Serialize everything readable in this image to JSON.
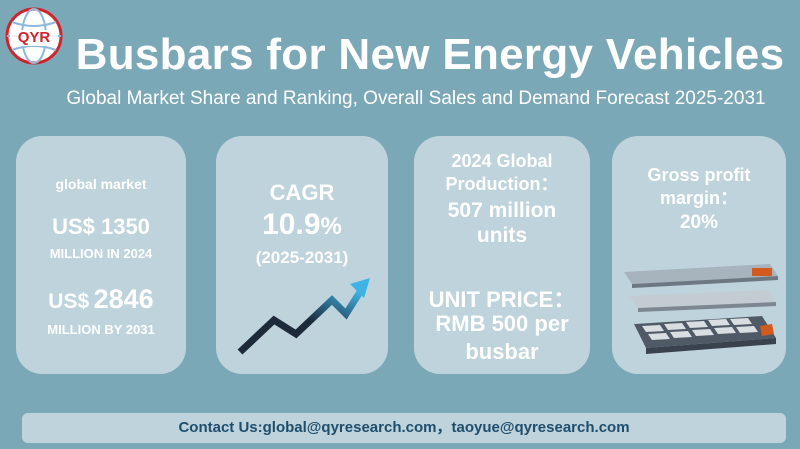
{
  "logo": {
    "text": "QYR",
    "icon": "globe-icon",
    "color": "#d0232a"
  },
  "header": {
    "title": "Busbars for New Energy Vehicles",
    "subtitle": "Global Market Share and Ranking, Overall Sales and Demand Forecast 2025-2031"
  },
  "cards": {
    "market": {
      "label": "global market",
      "value_2024": "US$ 1350",
      "value_2024_unit": "MILLION IN 2024",
      "value_2031_prefix": "US$",
      "value_2031_number": "2846",
      "value_2031_unit": "MILLION BY 2031"
    },
    "cagr": {
      "label": "CAGR",
      "value": "10.9",
      "percent": "%",
      "period": "(2025-2031)",
      "icon": "trend-arrow-icon"
    },
    "production": {
      "label_line1": "2024 Global",
      "label_line2": "Production：",
      "value_line1": "507 million",
      "value_line2": "units",
      "price_label": "UNIT PRICE：",
      "price_line1": "RMB 500 per",
      "price_line2": "busbar"
    },
    "margin": {
      "label_line1": "Gross profit",
      "label_line2": "margin：",
      "value": "20%",
      "icon": "battery-pack-icon"
    }
  },
  "footer": {
    "contact": "Contact Us:global@qyresearch.com，taoyue@qyresearch.com"
  },
  "colors": {
    "background": "#7ba8b7",
    "card": "#bed3dc",
    "text": "#ffffff",
    "contact_text": "#1f4e6d",
    "arrow_dark": "#1d2a3a",
    "arrow_light": "#3fb3e6"
  }
}
